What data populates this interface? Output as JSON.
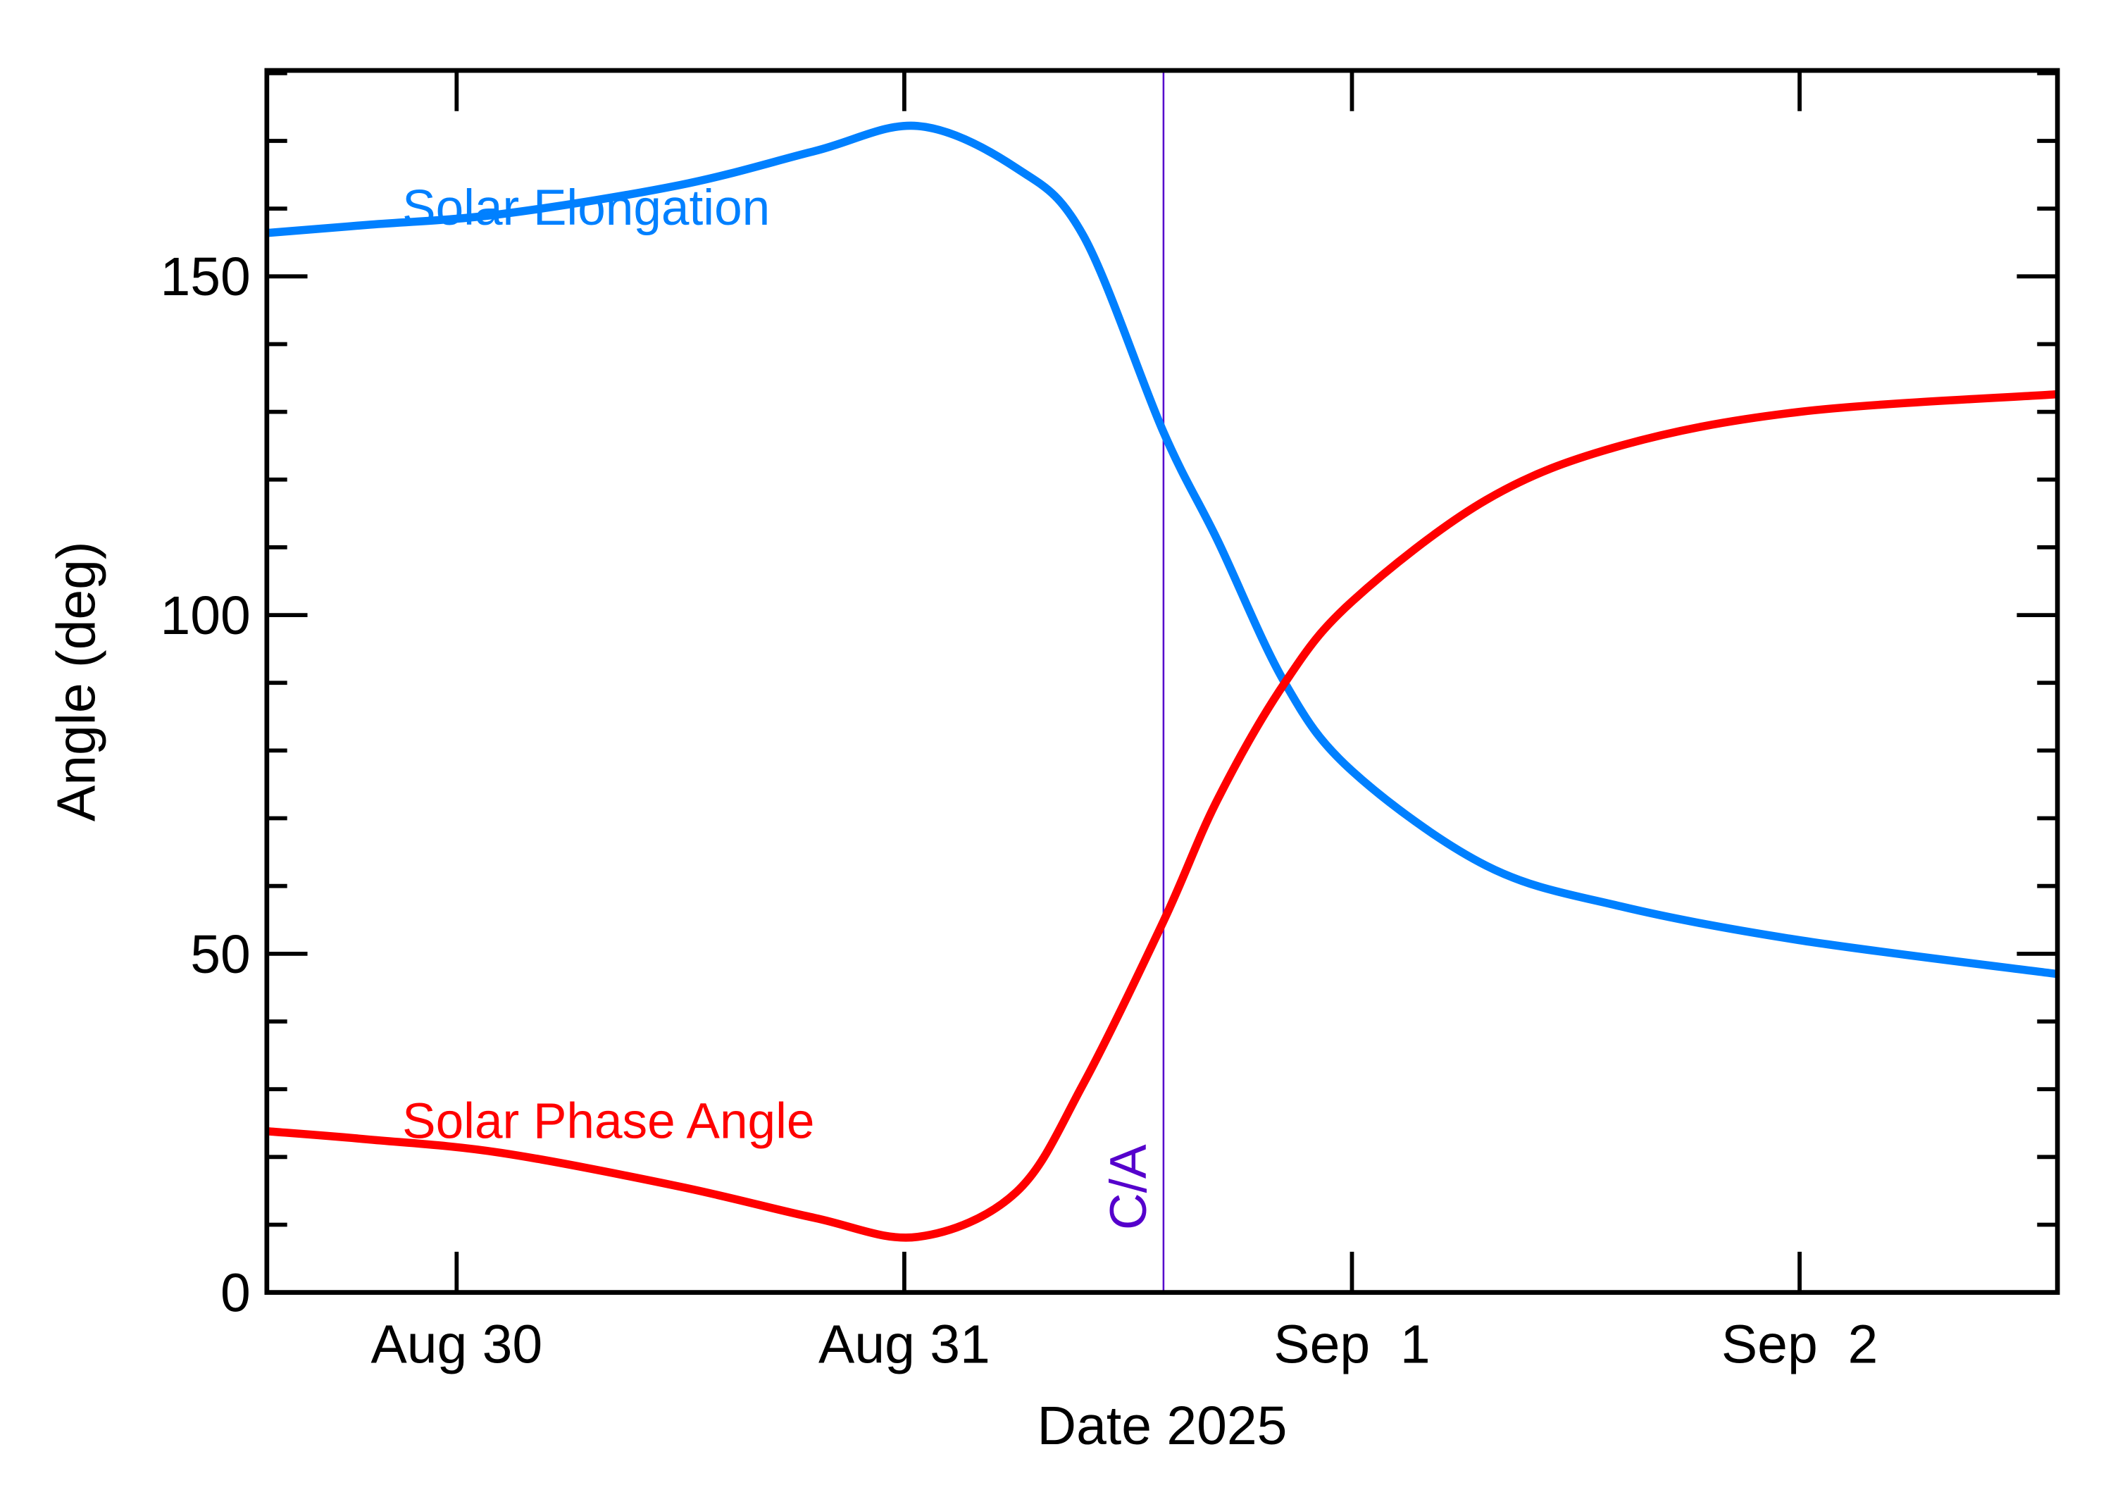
{
  "chart_data": {
    "type": "line",
    "title": "",
    "xlabel": "Date 2025",
    "ylabel": "Angle (deg)",
    "x_units": "days since Aug 30 2025 00:00",
    "xlim": [
      -0.424,
      3.576
    ],
    "ylim": [
      0,
      180.4
    ],
    "x_ticks": [
      {
        "value": 0,
        "label": "Aug 30"
      },
      {
        "value": 1,
        "label": "Aug 31"
      },
      {
        "value": 2,
        "label": "Sep  1"
      },
      {
        "value": 3,
        "label": "Sep  2"
      }
    ],
    "y_ticks": [
      {
        "value": 0,
        "label": "0"
      },
      {
        "value": 50,
        "label": "50"
      },
      {
        "value": 100,
        "label": "100"
      },
      {
        "value": 150,
        "label": "150"
      }
    ],
    "y_minor_step": 10,
    "grid": false,
    "closest_approach": {
      "label": "C/A",
      "x": 1.579,
      "color": "#5500cc"
    },
    "series": [
      {
        "name": "Solar Elongation",
        "color": "#0080ff",
        "x": [
          -0.424,
          -0.2,
          0.1,
          0.5,
          0.8,
          1.03,
          1.25,
          1.4,
          1.579,
          1.7,
          1.85,
          2.0,
          2.3,
          2.6,
          3.0,
          3.576
        ],
        "y": [
          156.4,
          157.6,
          159.2,
          163.5,
          168.5,
          172.2,
          166,
          156,
          127,
          111,
          90,
          77,
          63,
          57,
          52,
          47
        ]
      },
      {
        "name": "Solar Phase Angle",
        "color": "#ff0000",
        "x": [
          -0.424,
          -0.2,
          0.1,
          0.5,
          0.8,
          1.03,
          1.25,
          1.4,
          1.579,
          1.7,
          1.85,
          2.0,
          2.3,
          2.6,
          3.0,
          3.576
        ],
        "y": [
          23.8,
          22.6,
          20.6,
          15.6,
          11,
          8.2,
          14.8,
          30.8,
          54.8,
          72.8,
          90,
          102,
          117,
          125,
          130,
          132.6
        ]
      }
    ]
  }
}
